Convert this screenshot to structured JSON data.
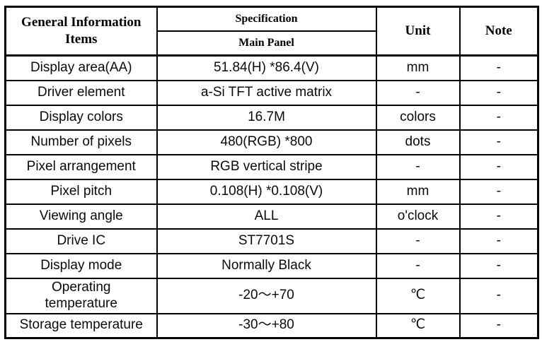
{
  "table": {
    "header": {
      "items_label": "General Information\nItems",
      "spec_label": "Specification",
      "spec_sub_label": "Main Panel",
      "unit_label": "Unit",
      "note_label": "Note"
    },
    "rows": [
      {
        "item": "Display area(AA)",
        "spec": "51.84(H) *86.4(V)",
        "unit": "mm",
        "note": "-"
      },
      {
        "item": "Driver element",
        "spec": "a-Si TFT active matrix",
        "unit": "-",
        "note": "-"
      },
      {
        "item": "Display colors",
        "spec": "16.7M",
        "unit": "colors",
        "note": "-"
      },
      {
        "item": "Number of pixels",
        "spec": "480(RGB) *800",
        "unit": "dots",
        "note": "-"
      },
      {
        "item": "Pixel arrangement",
        "spec": "RGB vertical stripe",
        "unit": "-",
        "note": "-"
      },
      {
        "item": "Pixel pitch",
        "spec": "0.108(H) *0.108(V)",
        "unit": "mm",
        "note": "-"
      },
      {
        "item": "Viewing angle",
        "spec": "ALL",
        "unit": "o'clock",
        "note": "-"
      },
      {
        "item": "Drive IC",
        "spec": "ST7701S",
        "unit": "-",
        "note": "-"
      },
      {
        "item": "Display mode",
        "spec": "Normally Black",
        "unit": "-",
        "note": "-"
      },
      {
        "item": "Operating\ntemperature",
        "spec": "-20～+70",
        "unit": "℃",
        "note": "-"
      },
      {
        "item": "Storage temperature",
        "spec": "-30～+80",
        "unit": "℃",
        "note": "-"
      }
    ],
    "colors": {
      "border": "#000000",
      "text": "#0a0a0a",
      "background": "#ffffff"
    }
  }
}
